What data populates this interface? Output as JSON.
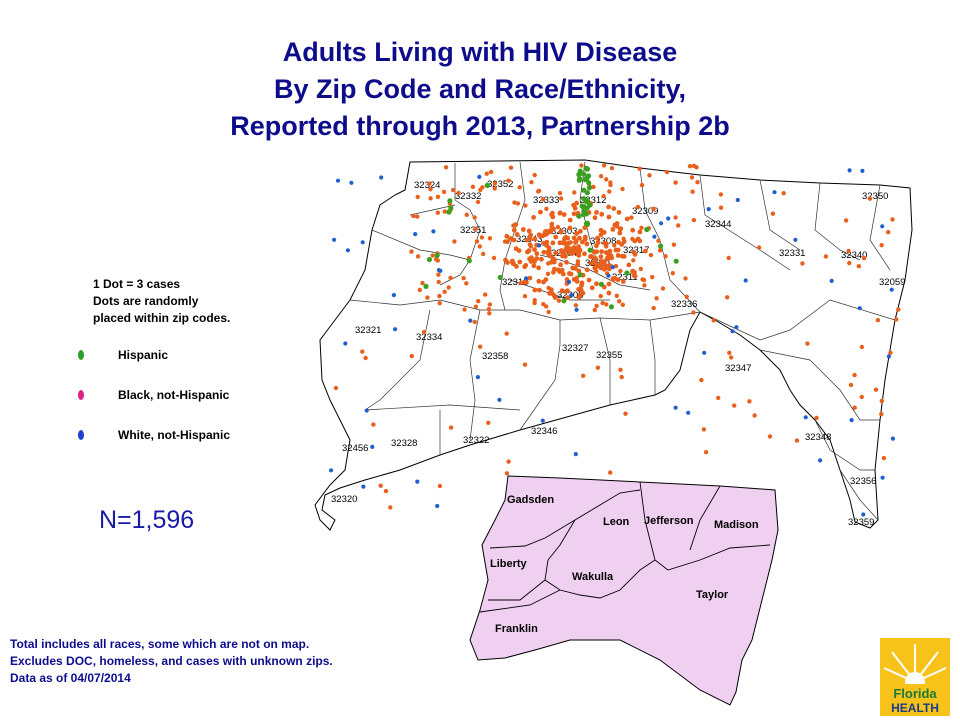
{
  "title": {
    "line1": "Adults Living with HIV Disease",
    "line2": "By Zip Code and Race/Ethnicity,",
    "line3": "Reported through 2013, Partnership 2b"
  },
  "legend": {
    "note_line1": "1 Dot = 3 cases",
    "note_line2": "Dots are randomly",
    "note_line3": "placed within zip codes.",
    "items": [
      {
        "label": "Hispanic",
        "color": "#2ca02c"
      },
      {
        "label": "Black, not-Hispanic",
        "color": "#e0218a"
      },
      {
        "label": "White, not-Hispanic",
        "color": "#1f3fcf"
      }
    ]
  },
  "total": "N=1,596",
  "footnote": {
    "line1": "Total includes all races, some which are not on map.",
    "line2": "Excludes DOC, homeless, and cases with unknown zips.",
    "line3": "Data as of 04/07/2014"
  },
  "colors": {
    "title": "#0d0d8c",
    "dot_orange": "#e8601c",
    "dot_green": "#3aa020",
    "dot_blue": "#1e5fd0",
    "county_fill": "#f0d0f0"
  },
  "zip_labels": [
    "32324",
    "32352",
    "32332",
    "32333",
    "32312",
    "32350",
    "32309",
    "32344",
    "32351",
    "32343",
    "32303",
    "32308",
    "32304",
    "32317",
    "32331",
    "32340",
    "32301",
    "32310",
    "32311",
    "32059",
    "32305",
    "32336",
    "32321",
    "32334",
    "32327",
    "32358",
    "32355",
    "32347",
    "32456",
    "32328",
    "32322",
    "32346",
    "32348",
    "32356",
    "32320",
    "32359"
  ],
  "counties": [
    "Gadsden",
    "Leon",
    "Jefferson",
    "Madison",
    "Liberty",
    "Wakulla",
    "Taylor",
    "Franklin"
  ],
  "logo": {
    "line1": "Florida",
    "line2": "HEALTH"
  }
}
